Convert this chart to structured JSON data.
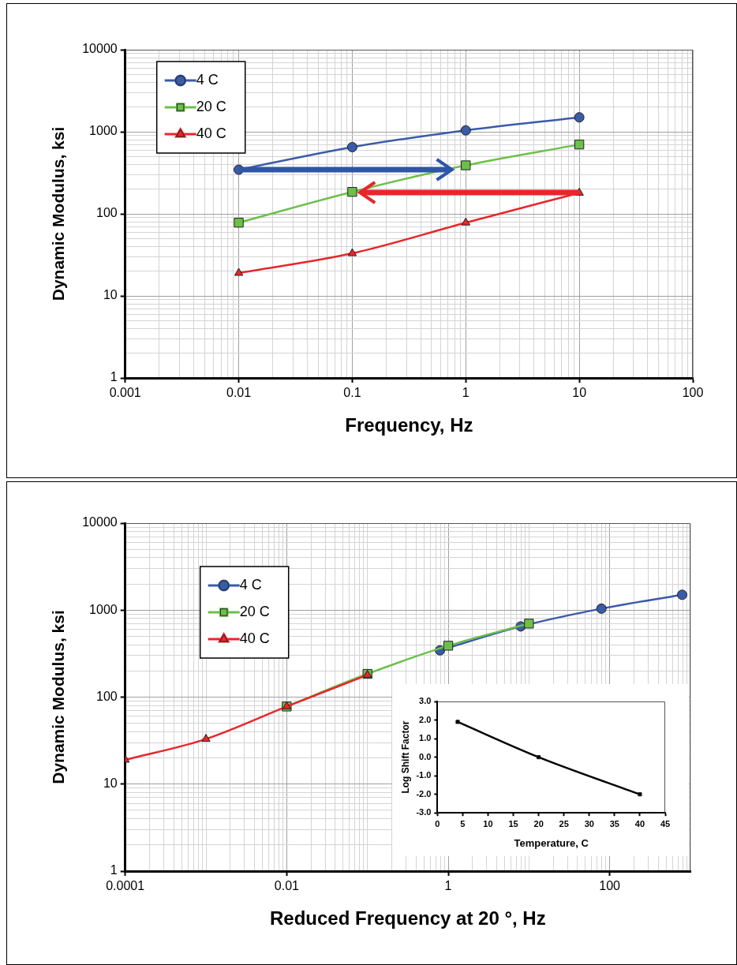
{
  "chart_data": [
    {
      "type": "line",
      "xlabel": "Frequency, Hz",
      "ylabel": "Dynamic Modulus, ksi",
      "log": "xy",
      "grid": true,
      "legend": "top left",
      "xlim": [
        0.001,
        100
      ],
      "ylim": [
        1,
        10000
      ],
      "xticks": [
        0.001,
        {
          "value": 0.002,
          "label": null
        },
        {
          "value": 0.003,
          "label": null
        },
        {
          "value": 0.004,
          "label": null
        },
        {
          "value": 0.005,
          "label": null
        },
        {
          "value": 0.006,
          "label": null
        },
        {
          "value": 0.007,
          "label": null
        },
        {
          "value": 0.008,
          "label": null
        },
        {
          "value": 0.009,
          "label": null
        },
        0.01,
        {
          "value": 0.02,
          "label": null
        },
        {
          "value": 0.03,
          "label": null
        },
        {
          "value": 0.04,
          "label": null
        },
        {
          "value": 0.05,
          "label": null
        },
        {
          "value": 0.06,
          "label": null
        },
        {
          "value": 0.07,
          "label": null
        },
        {
          "value": 0.08,
          "label": null
        },
        {
          "value": 0.09,
          "label": null
        },
        0.1,
        {
          "value": 0.2,
          "label": null
        },
        {
          "value": 0.3,
          "label": null
        },
        {
          "value": 0.4,
          "label": null
        },
        {
          "value": 0.5,
          "label": null
        },
        {
          "value": 0.6,
          "label": null
        },
        {
          "value": 0.7,
          "label": null
        },
        {
          "value": 0.8,
          "label": null
        },
        {
          "value": 0.9,
          "label": null
        },
        1,
        {
          "value": 2,
          "label": null
        },
        {
          "value": 3,
          "label": null
        },
        {
          "value": 4,
          "label": null
        },
        {
          "value": 5,
          "label": null
        },
        {
          "value": 6,
          "label": null
        },
        {
          "value": 7,
          "label": null
        },
        {
          "value": 8,
          "label": null
        },
        {
          "value": 9,
          "label": null
        },
        10,
        {
          "value": 20,
          "label": null
        },
        {
          "value": 30,
          "label": null
        },
        {
          "value": 40,
          "label": null
        },
        {
          "value": 50,
          "label": null
        },
        {
          "value": 60,
          "label": null
        },
        {
          "value": 70,
          "label": null
        },
        {
          "value": 80,
          "label": null
        },
        {
          "value": 90,
          "label": null
        },
        100
      ],
      "yticks": [
        1,
        {
          "value": 2,
          "label": null
        },
        {
          "value": 3,
          "label": null
        },
        {
          "value": 4,
          "label": null
        },
        {
          "value": 5,
          "label": null
        },
        {
          "value": 6,
          "label": null
        },
        {
          "value": 7,
          "label": null
        },
        {
          "value": 8,
          "label": null
        },
        {
          "value": 9,
          "label": null
        },
        10,
        {
          "value": 20,
          "label": null
        },
        {
          "value": 30,
          "label": null
        },
        {
          "value": 40,
          "label": null
        },
        {
          "value": 50,
          "label": null
        },
        {
          "value": 60,
          "label": null
        },
        {
          "value": 70,
          "label": null
        },
        {
          "value": 80,
          "label": null
        },
        {
          "value": 90,
          "label": null
        },
        100,
        {
          "value": 200,
          "label": null
        },
        {
          "value": 300,
          "label": null
        },
        {
          "value": 400,
          "label": null
        },
        {
          "value": 500,
          "label": null
        },
        {
          "value": 600,
          "label": null
        },
        {
          "value": 700,
          "label": null
        },
        {
          "value": 800,
          "label": null
        },
        {
          "value": 900,
          "label": null
        },
        1000,
        {
          "value": 2000,
          "label": null
        },
        {
          "value": 3000,
          "label": null
        },
        {
          "value": 4000,
          "label": null
        },
        {
          "value": 5000,
          "label": null
        },
        {
          "value": 6000,
          "label": null
        },
        {
          "value": 7000,
          "label": null
        },
        {
          "value": 8000,
          "label": null
        },
        {
          "value": 9000,
          "label": null
        },
        10000
      ],
      "series": [
        {
          "name": "4 C",
          "color": "#3a5ba8",
          "marker": "circle",
          "x": [
            0.01,
            0.1,
            1,
            10
          ],
          "values": [
            345,
            650,
            1040,
            1500
          ]
        },
        {
          "name": "20 C",
          "color": "#6cc04a",
          "marker": "square",
          "x": [
            0.01,
            0.1,
            1,
            10
          ],
          "values": [
            78,
            185,
            390,
            700
          ]
        },
        {
          "name": "40 C",
          "color": "#e8262b",
          "marker": "triangle",
          "x": [
            0.01,
            0.1,
            1,
            10
          ],
          "values": [
            19,
            33,
            78,
            180
          ]
        }
      ]
    },
    {
      "type": "line",
      "xlabel": "Reduced Frequency at 20 °, Hz",
      "ylabel": "Dynamic Modulus, ksi",
      "log": "xy",
      "grid": true,
      "legend": "top left",
      "xlim": [
        0.0001,
        1000
      ],
      "ylim": [
        1,
        10000
      ],
      "xticks": [
        0.0001,
        {
          "value": 0.0002,
          "label": null
        },
        {
          "value": 0.0003,
          "label": null
        },
        {
          "value": 0.0004,
          "label": null
        },
        {
          "value": 0.0005,
          "label": null
        },
        {
          "value": 0.0006,
          "label": null
        },
        {
          "value": 0.0007,
          "label": null
        },
        {
          "value": 0.0008,
          "label": null
        },
        {
          "value": 0.0009,
          "label": null
        },
        {
          "value": 0.001,
          "label": null
        },
        {
          "value": 0.002,
          "label": null
        },
        {
          "value": 0.003,
          "label": null
        },
        {
          "value": 0.004,
          "label": null
        },
        {
          "value": 0.005,
          "label": null
        },
        {
          "value": 0.006,
          "label": null
        },
        {
          "value": 0.007,
          "label": null
        },
        {
          "value": 0.008,
          "label": null
        },
        {
          "value": 0.009,
          "label": null
        },
        0.01,
        {
          "value": 0.02,
          "label": null
        },
        {
          "value": 0.03,
          "label": null
        },
        {
          "value": 0.04,
          "label": null
        },
        {
          "value": 0.05,
          "label": null
        },
        {
          "value": 0.06,
          "label": null
        },
        {
          "value": 0.07,
          "label": null
        },
        {
          "value": 0.08,
          "label": null
        },
        {
          "value": 0.09,
          "label": null
        },
        {
          "value": 0.1,
          "label": null
        },
        {
          "value": 0.2,
          "label": null
        },
        {
          "value": 0.3,
          "label": null
        },
        {
          "value": 0.4,
          "label": null
        },
        {
          "value": 0.5,
          "label": null
        },
        {
          "value": 0.6,
          "label": null
        },
        {
          "value": 0.7,
          "label": null
        },
        {
          "value": 0.8,
          "label": null
        },
        {
          "value": 0.9,
          "label": null
        },
        1,
        {
          "value": 2,
          "label": null
        },
        {
          "value": 3,
          "label": null
        },
        {
          "value": 4,
          "label": null
        },
        {
          "value": 5,
          "label": null
        },
        {
          "value": 6,
          "label": null
        },
        {
          "value": 7,
          "label": null
        },
        {
          "value": 8,
          "label": null
        },
        {
          "value": 9,
          "label": null
        },
        {
          "value": 10,
          "label": null
        },
        {
          "value": 20,
          "label": null
        },
        {
          "value": 30,
          "label": null
        },
        {
          "value": 40,
          "label": null
        },
        {
          "value": 50,
          "label": null
        },
        {
          "value": 60,
          "label": null
        },
        {
          "value": 70,
          "label": null
        },
        {
          "value": 80,
          "label": null
        },
        {
          "value": 90,
          "label": null
        },
        100,
        {
          "value": 200,
          "label": null
        },
        {
          "value": 300,
          "label": null
        },
        {
          "value": 400,
          "label": null
        },
        {
          "value": 500,
          "label": null
        },
        {
          "value": 600,
          "label": null
        },
        {
          "value": 700,
          "label": null
        },
        {
          "value": 800,
          "label": null
        },
        {
          "value": 900,
          "label": null
        },
        {
          "value": 1000,
          "label": null
        }
      ],
      "yticks": [
        1,
        {
          "value": 2,
          "label": null
        },
        {
          "value": 3,
          "label": null
        },
        {
          "value": 4,
          "label": null
        },
        {
          "value": 5,
          "label": null
        },
        {
          "value": 6,
          "label": null
        },
        {
          "value": 7,
          "label": null
        },
        {
          "value": 8,
          "label": null
        },
        {
          "value": 9,
          "label": null
        },
        10,
        {
          "value": 20,
          "label": null
        },
        {
          "value": 30,
          "label": null
        },
        {
          "value": 40,
          "label": null
        },
        {
          "value": 50,
          "label": null
        },
        {
          "value": 60,
          "label": null
        },
        {
          "value": 70,
          "label": null
        },
        {
          "value": 80,
          "label": null
        },
        {
          "value": 90,
          "label": null
        },
        100,
        {
          "value": 200,
          "label": null
        },
        {
          "value": 300,
          "label": null
        },
        {
          "value": 400,
          "label": null
        },
        {
          "value": 500,
          "label": null
        },
        {
          "value": 600,
          "label": null
        },
        {
          "value": 700,
          "label": null
        },
        {
          "value": 800,
          "label": null
        },
        {
          "value": 900,
          "label": null
        },
        1000,
        {
          "value": 2000,
          "label": null
        },
        {
          "value": 3000,
          "label": null
        },
        {
          "value": 4000,
          "label": null
        },
        {
          "value": 5000,
          "label": null
        },
        {
          "value": 6000,
          "label": null
        },
        {
          "value": 7000,
          "label": null
        },
        {
          "value": 8000,
          "label": null
        },
        {
          "value": 9000,
          "label": null
        },
        10000
      ],
      "series": [
        {
          "name": "4 C",
          "color": "#3a5ba8",
          "marker": "circle",
          "x": [
            0.79,
            7.9,
            79,
            790
          ],
          "values": [
            345,
            650,
            1040,
            1500
          ]
        },
        {
          "name": "20 C",
          "color": "#6cc04a",
          "marker": "square",
          "x": [
            0.01,
            0.1,
            1,
            10
          ],
          "values": [
            78,
            185,
            390,
            700
          ]
        },
        {
          "name": "40 C",
          "color": "#e8262b",
          "marker": "triangle",
          "x": [
            0.0001,
            0.001,
            0.01,
            0.1
          ],
          "values": [
            19,
            33,
            78,
            180
          ]
        }
      ]
    },
    {
      "type": "line",
      "xlabel": "Temperature, C",
      "ylabel": "Log Shift Factor",
      "marker": "square",
      "xlim": [
        0,
        45
      ],
      "ylim": [
        -3,
        3
      ],
      "xticks": [
        0,
        5,
        10,
        15,
        20,
        25,
        30,
        35,
        40,
        45
      ],
      "yticks": [
        {
          "value": -3,
          "label": "-3.0"
        },
        {
          "value": -2,
          "label": "-2.0"
        },
        {
          "value": -1,
          "label": "-1.0"
        },
        {
          "value": 0,
          "label": "0.0"
        },
        {
          "value": 1,
          "label": "1.0"
        },
        {
          "value": 2,
          "label": "2.0"
        },
        {
          "value": 3,
          "label": "3.0"
        }
      ],
      "series": [
        {
          "color": "#000000",
          "x": [
            4,
            20,
            40
          ],
          "values": [
            1.9,
            0,
            -2
          ]
        }
      ]
    }
  ]
}
